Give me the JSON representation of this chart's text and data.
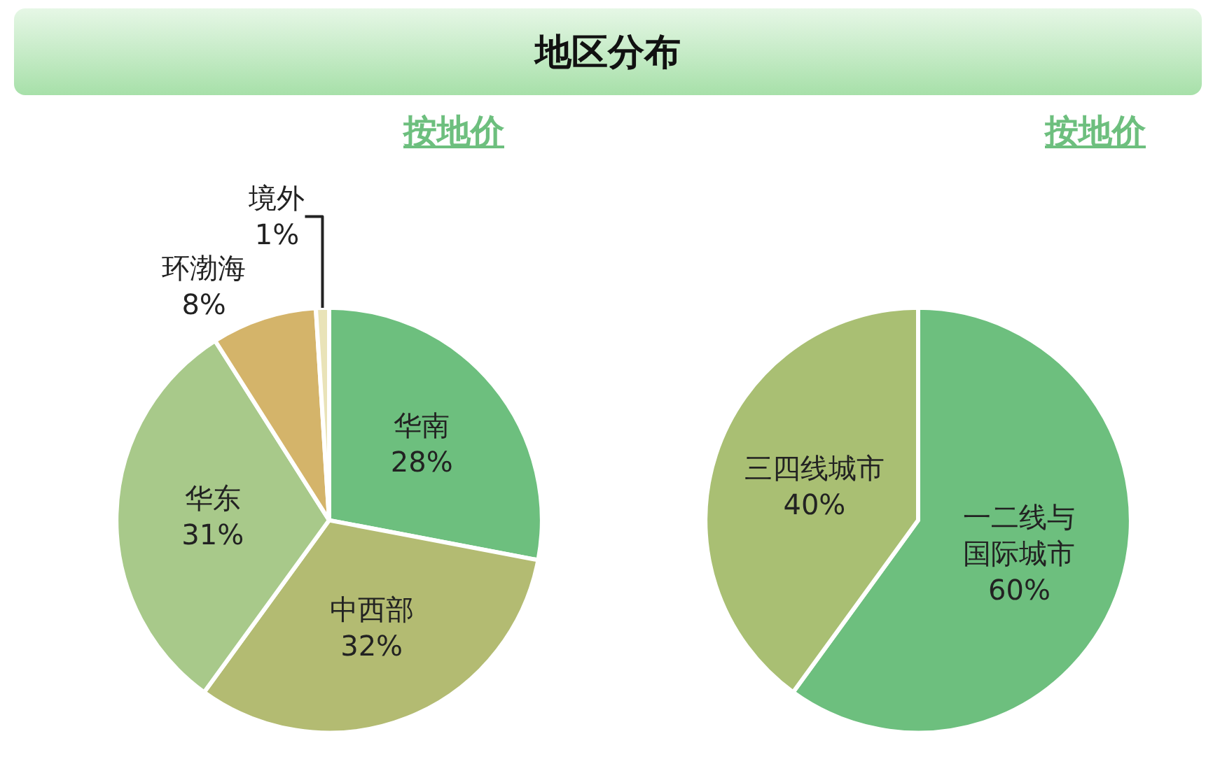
{
  "chart_data": [
    {
      "type": "pie",
      "title": "地区分布",
      "subtitle": "按地价",
      "categories": [
        "华南",
        "中西部",
        "华东",
        "环渤海",
        "境外"
      ],
      "values": [
        28,
        32,
        31,
        8,
        1
      ],
      "value_labels": [
        "28%",
        "32%",
        "31%",
        "8%",
        "1%"
      ],
      "colors": [
        "#6dbf7e",
        "#b3bb72",
        "#a8c98a",
        "#d4b46a",
        "#e9e3b8"
      ],
      "legend": false
    },
    {
      "type": "pie",
      "subtitle": "按地价",
      "categories": [
        "一二线与国际城市",
        "三四线城市"
      ],
      "values": [
        60,
        40
      ],
      "value_labels": [
        "60%",
        "40%"
      ],
      "colors": [
        "#6dbf7e",
        "#a9bf73"
      ],
      "legend": false
    }
  ]
}
